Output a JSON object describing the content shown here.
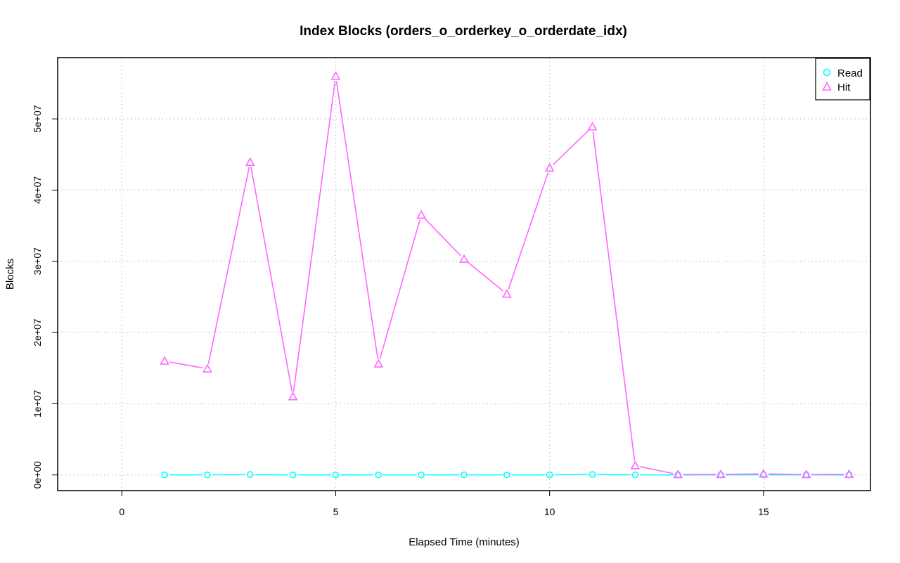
{
  "chart_data": {
    "type": "line",
    "title": "Index Blocks (orders_o_orderkey_o_orderdate_idx)",
    "xlabel": "Elapsed Time (minutes)",
    "ylabel": "Blocks",
    "xlim": [
      -1.5,
      17.5
    ],
    "ylim": [
      -2200000,
      58600000
    ],
    "x_ticks": [
      0,
      5,
      10,
      15
    ],
    "x_tick_labels": [
      "0",
      "5",
      "10",
      "15"
    ],
    "y_ticks": [
      0,
      10000000,
      20000000,
      30000000,
      40000000,
      50000000
    ],
    "y_tick_labels": [
      "0e+00",
      "1e+07",
      "2e+07",
      "3e+07",
      "4e+07",
      "5e+07"
    ],
    "grid": true,
    "legend_position": "top-right",
    "x": [
      1,
      2,
      3,
      4,
      5,
      6,
      7,
      8,
      9,
      10,
      11,
      12,
      13,
      14,
      15,
      16,
      17
    ],
    "series": [
      {
        "name": "Read",
        "color": "#00ffff",
        "marker": "circle",
        "values": [
          20000,
          15000,
          60000,
          10000,
          5000,
          8000,
          12000,
          10000,
          8000,
          15000,
          70000,
          10000,
          5000,
          8000,
          10000,
          8000,
          5000
        ]
      },
      {
        "name": "Hit",
        "color": "#ff66ff",
        "marker": "triangle",
        "values": [
          16000000,
          14900000,
          43900000,
          11000000,
          56000000,
          15600000,
          36500000,
          30300000,
          25400000,
          43100000,
          48900000,
          1300000,
          50000,
          80000,
          150000,
          60000,
          100000
        ]
      }
    ]
  }
}
